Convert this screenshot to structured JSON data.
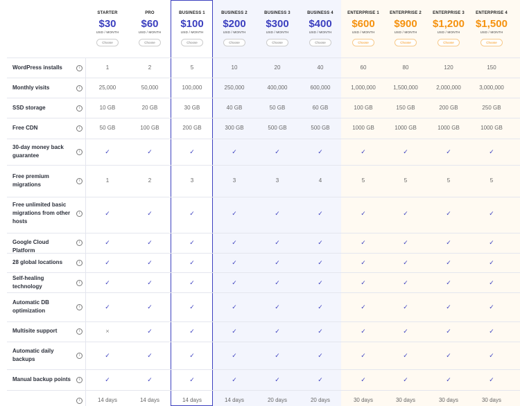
{
  "plans": [
    {
      "name": "STARTER",
      "price": "$30",
      "unit": "USD / MONTH",
      "button": "Choose",
      "tier": "purple"
    },
    {
      "name": "PRO",
      "price": "$60",
      "unit": "USD / MONTH",
      "button": "Choose",
      "tier": "purple"
    },
    {
      "name": "BUSINESS 1",
      "price": "$100",
      "unit": "USD / MONTH",
      "button": "Choose",
      "tier": "purple"
    },
    {
      "name": "BUSINESS 2",
      "price": "$200",
      "unit": "USD / MONTH",
      "button": "Choose",
      "tier": "purple"
    },
    {
      "name": "BUSINESS 3",
      "price": "$300",
      "unit": "USD / MONTH",
      "button": "Choose",
      "tier": "purple"
    },
    {
      "name": "BUSINESS 4",
      "price": "$400",
      "unit": "USD / MONTH",
      "button": "Choose",
      "tier": "purple"
    },
    {
      "name": "ENTERPRISE 1",
      "price": "$600",
      "unit": "USD / MONTH",
      "button": "Choose",
      "tier": "orange"
    },
    {
      "name": "ENTERPRISE 2",
      "price": "$900",
      "unit": "USD / MONTH",
      "button": "Choose",
      "tier": "orange"
    },
    {
      "name": "ENTERPRISE 3",
      "price": "$1,200",
      "unit": "USD / MONTH",
      "button": "Choose",
      "tier": "orange"
    },
    {
      "name": "ENTERPRISE 4",
      "price": "$1,500",
      "unit": "USD / MONTH",
      "button": "Choose",
      "tier": "orange"
    }
  ],
  "rows": [
    {
      "label": "WordPress installs",
      "values": [
        "1",
        "2",
        "5",
        "10",
        "20",
        "40",
        "60",
        "80",
        "120",
        "150"
      ]
    },
    {
      "label": "Monthly visits",
      "values": [
        "25,000",
        "50,000",
        "100,000",
        "250,000",
        "400,000",
        "600,000",
        "1,000,000",
        "1,500,000",
        "2,000,000",
        "3,000,000"
      ]
    },
    {
      "label": "SSD storage",
      "values": [
        "10 GB",
        "20 GB",
        "30 GB",
        "40 GB",
        "50 GB",
        "60 GB",
        "100 GB",
        "150 GB",
        "200 GB",
        "250 GB"
      ]
    },
    {
      "label": "Free CDN",
      "values": [
        "50 GB",
        "100 GB",
        "200 GB",
        "300 GB",
        "500 GB",
        "500 GB",
        "1000 GB",
        "1000 GB",
        "1000 GB",
        "1000 GB"
      ]
    },
    {
      "label": "30-day money back guarantee",
      "values": [
        "✓",
        "✓",
        "✓",
        "✓",
        "✓",
        "✓",
        "✓",
        "✓",
        "✓",
        "✓"
      ]
    },
    {
      "label": "Free premium migrations",
      "values": [
        "1",
        "2",
        "3",
        "3",
        "3",
        "4",
        "5",
        "5",
        "5",
        "5"
      ]
    },
    {
      "label": "Free unlimited basic migrations from other hosts",
      "values": [
        "✓",
        "✓",
        "✓",
        "✓",
        "✓",
        "✓",
        "✓",
        "✓",
        "✓",
        "✓"
      ]
    },
    {
      "label": "Google Cloud Platform",
      "values": [
        "✓",
        "✓",
        "✓",
        "✓",
        "✓",
        "✓",
        "✓",
        "✓",
        "✓",
        "✓"
      ]
    },
    {
      "label": "28 global locations",
      "values": [
        "✓",
        "✓",
        "✓",
        "✓",
        "✓",
        "✓",
        "✓",
        "✓",
        "✓",
        "✓"
      ]
    },
    {
      "label": "Self-healing technology",
      "values": [
        "✓",
        "✓",
        "✓",
        "✓",
        "✓",
        "✓",
        "✓",
        "✓",
        "✓",
        "✓"
      ]
    },
    {
      "label": "Automatic DB optimization",
      "values": [
        "✓",
        "✓",
        "✓",
        "✓",
        "✓",
        "✓",
        "✓",
        "✓",
        "✓",
        "✓"
      ]
    },
    {
      "label": "Multisite support",
      "values": [
        "×",
        "✓",
        "✓",
        "✓",
        "✓",
        "✓",
        "✓",
        "✓",
        "✓",
        "✓"
      ]
    },
    {
      "label": "Automatic daily backups",
      "values": [
        "✓",
        "✓",
        "✓",
        "✓",
        "✓",
        "✓",
        "✓",
        "✓",
        "✓",
        "✓"
      ]
    },
    {
      "label": "Manual backup points",
      "values": [
        "✓",
        "✓",
        "✓",
        "✓",
        "✓",
        "✓",
        "✓",
        "✓",
        "✓",
        "✓"
      ]
    },
    {
      "label": "",
      "values": [
        "14 days",
        "14 days",
        "14 days",
        "14 days",
        "20 days",
        "20 days",
        "30 days",
        "30 days",
        "30 days",
        "30 days"
      ]
    }
  ],
  "info_icon": "info-circle-icon",
  "colors": {
    "purple": "#3b3fbf",
    "orange": "#f5920f"
  }
}
